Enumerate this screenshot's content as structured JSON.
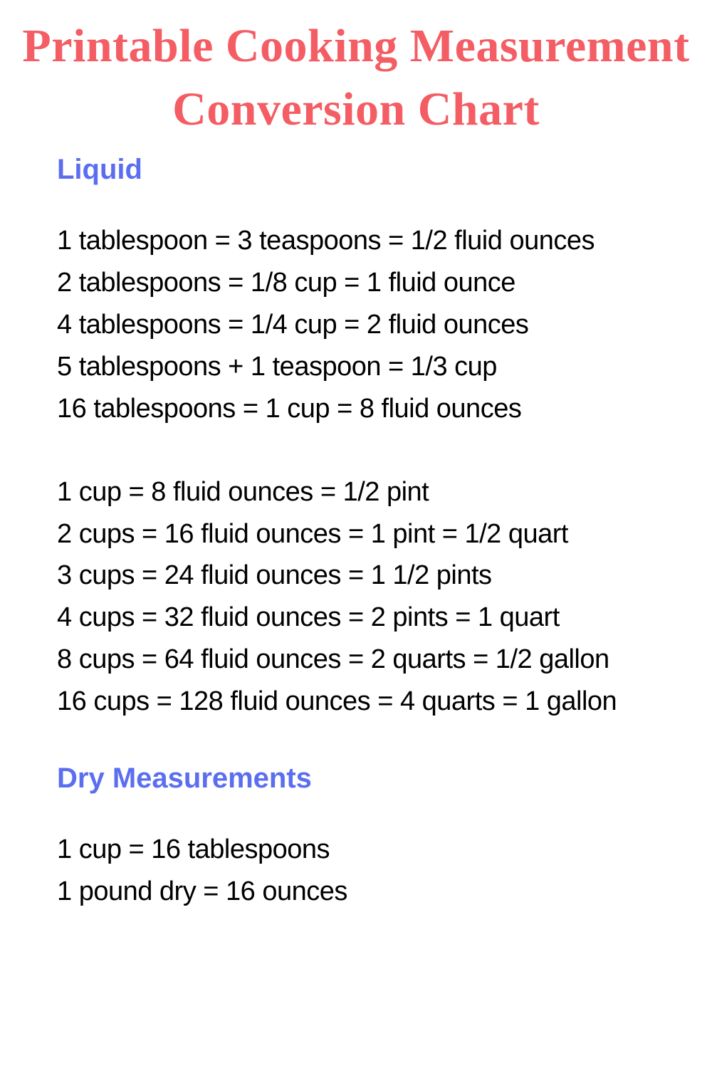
{
  "title": "Printable Cooking Measurement Conversion Chart",
  "colors": {
    "title_color": "#f35d63",
    "heading_color": "#5b6ef0",
    "body_text_color": "#000000",
    "background_color": "#ffffff"
  },
  "typography": {
    "title_fontsize": 66,
    "title_font_family": "Brush Script MT, cursive",
    "heading_fontsize": 40,
    "body_fontsize": 38,
    "body_font_family": "Arial Narrow"
  },
  "sections": [
    {
      "heading": "Liquid",
      "groups": [
        [
          "1 tablespoon = 3 teaspoons = 1/2 fluid ounces",
          "2 tablespoons = 1/8 cup = 1 fluid ounce",
          "4 tablespoons = 1/4 cup = 2 fluid ounces",
          "5 tablespoons + 1 teaspoon = 1/3 cup",
          "16 tablespoons = 1 cup = 8 fluid ounces"
        ],
        [
          "1 cup = 8 fluid ounces = 1/2 pint",
          "2 cups = 16 fluid ounces = 1 pint = 1/2 quart",
          "3 cups = 24 fluid ounces = 1 1/2 pints",
          "4 cups = 32 fluid ounces = 2 pints = 1 quart",
          "8 cups = 64 fluid ounces = 2 quarts = 1/2 gallon",
          "16 cups = 128 fluid ounces = 4 quarts = 1 gallon"
        ]
      ]
    },
    {
      "heading": "Dry Measurements",
      "groups": [
        [
          "1 cup = 16 tablespoons",
          "1 pound dry = 16 ounces"
        ]
      ]
    }
  ]
}
